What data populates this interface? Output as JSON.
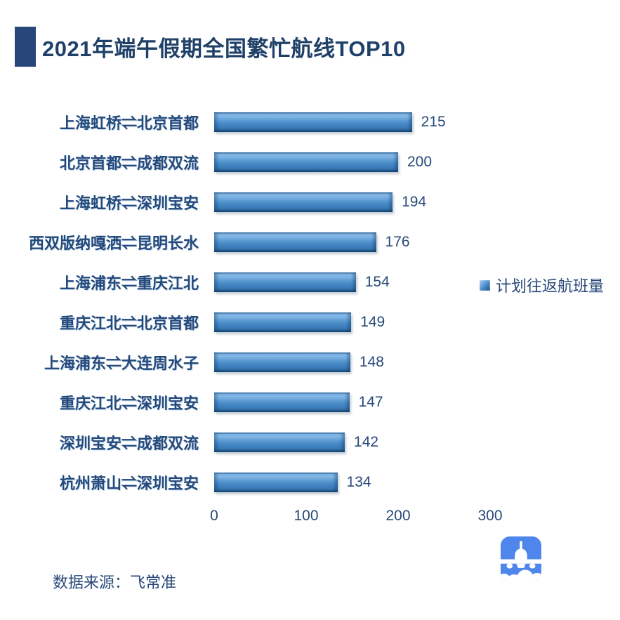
{
  "header": {
    "title": "2021年端午假期全国繁忙航线TOP10",
    "accent_block_color": "#27477A"
  },
  "chart_data": {
    "type": "bar",
    "orientation": "horizontal",
    "title": "2021年端午假期全国繁忙航线TOP10",
    "categories": [
      "上海虹桥⇌北京首都",
      "北京首都⇌成都双流",
      "上海虹桥⇌深圳宝安",
      "西双版纳嘎洒⇌昆明长水",
      "上海浦东⇌重庆江北",
      "重庆江北⇌北京首都",
      "上海浦东⇌大连周水子",
      "重庆江北⇌深圳宝安",
      "深圳宝安⇌成都双流",
      "杭州萧山⇌深圳宝安"
    ],
    "series": [
      {
        "name": "计划往返航班量",
        "values": [
          215,
          200,
          194,
          176,
          154,
          149,
          148,
          147,
          142,
          134
        ]
      }
    ],
    "xlabel": "",
    "ylabel": "",
    "xlim": [
      0,
      300
    ],
    "x_ticks": [
      0,
      100,
      200,
      300
    ],
    "grid": false,
    "data_labels": true,
    "legend_position": "right-middle",
    "bar_color": "#4385C4"
  },
  "legend": {
    "label": "计划往返航班量",
    "swatch_color": "#4385C4"
  },
  "x_axis": {
    "ticks": [
      "0",
      "100",
      "200",
      "300"
    ]
  },
  "footer": {
    "source_label": "数据来源：飞常准"
  },
  "logo": {
    "icon": "airplane-app-icon",
    "color": "#4E86EC"
  },
  "colors": {
    "text_navy": "#24497B",
    "title_navy": "#1F4068",
    "bar_highlight": "#86BBEA",
    "bar_shadow": "#1D4D77"
  }
}
